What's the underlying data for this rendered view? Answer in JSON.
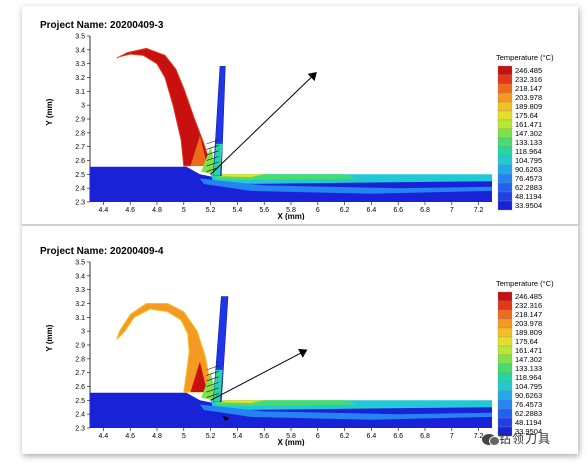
{
  "chart_data": [
    {
      "type": "contour",
      "title": "Project Name: 20200409-3",
      "xlabel": "X (mm)",
      "ylabel": "Y (mm)",
      "xlim": [
        4.3,
        7.3
      ],
      "ylim": [
        2.3,
        3.5
      ],
      "x_ticks": [
        "4.4",
        "4.6",
        "4.8",
        "5",
        "5.2",
        "5.4",
        "5.6",
        "5.8",
        "6",
        "6.2",
        "6.4",
        "6.6",
        "6.8",
        "7",
        "7.2"
      ],
      "y_ticks": [
        "2.3",
        "2.4",
        "2.5",
        "2.6",
        "2.7",
        "2.8",
        "2.9",
        "3",
        "3.1",
        "3.2",
        "3.3",
        "3.4",
        "3.5"
      ],
      "chip_curl": "high",
      "legend": {
        "title": "Temperature (°C)",
        "values": [
          "246.485",
          "232.316",
          "218.147",
          "203.978",
          "189.809",
          "175.64",
          "161.471",
          "147.302",
          "133.133",
          "118.964",
          "104.795",
          "90.6263",
          "76.4573",
          "62.2883",
          "48.1194",
          "33.9504"
        ]
      }
    },
    {
      "type": "contour",
      "title": "Project Name: 20200409-4",
      "xlabel": "X (mm)",
      "ylabel": "Y (mm)",
      "xlim": [
        4.3,
        7.3
      ],
      "ylim": [
        2.3,
        3.5
      ],
      "x_ticks": [
        "4.4",
        "4.6",
        "4.8",
        "5",
        "5.2",
        "5.4",
        "5.6",
        "5.8",
        "6",
        "6.2",
        "6.4",
        "6.6",
        "6.8",
        "7",
        "7.2"
      ],
      "y_ticks": [
        "2.3",
        "2.4",
        "2.5",
        "2.6",
        "2.7",
        "2.8",
        "2.9",
        "3",
        "3.1",
        "3.2",
        "3.3",
        "3.4",
        "3.5"
      ],
      "chip_curl": "low",
      "legend": {
        "title": "Temperature (°C)",
        "values": [
          "246.485",
          "232.316",
          "218.147",
          "203.978",
          "189.809",
          "175.64",
          "161.471",
          "147.302",
          "133.133",
          "118.964",
          "104.795",
          "90.6263",
          "76.4573",
          "62.2883",
          "48.1194",
          "33.9504"
        ]
      }
    }
  ],
  "colors": {
    "scale": [
      "#c81010",
      "#e03818",
      "#f06a1c",
      "#f49a22",
      "#f4c026",
      "#e4e02a",
      "#b8e636",
      "#7ee24a",
      "#48dc6e",
      "#26d4a6",
      "#22c8d4",
      "#24a8ea",
      "#2484f2",
      "#2460ee",
      "#2040e4",
      "#1a22d8"
    ],
    "workpiece": "#1a22d8"
  },
  "watermark": {
    "text": "钻领刀具"
  }
}
